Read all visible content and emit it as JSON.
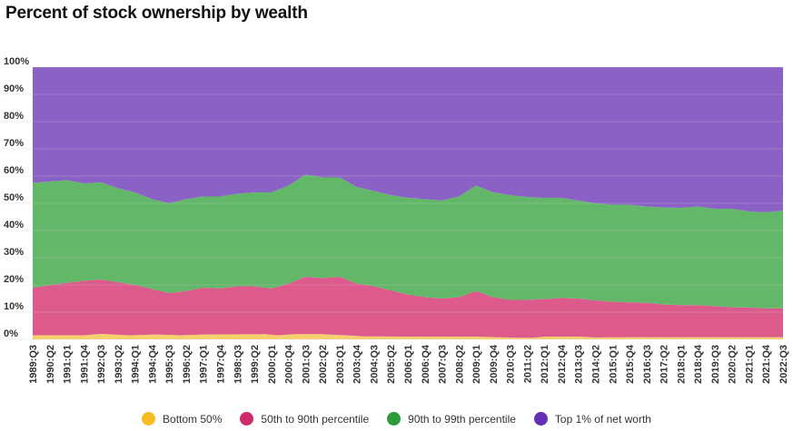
{
  "chart_data": {
    "type": "area",
    "stacked": true,
    "title": "Percent of stock ownership by wealth",
    "xlabel": "",
    "ylabel": "",
    "ylim": [
      0,
      100
    ],
    "yticks": [
      "0%",
      "10%",
      "20%",
      "30%",
      "40%",
      "50%",
      "60%",
      "70%",
      "80%",
      "90%",
      "100%"
    ],
    "grid": true,
    "legend_position": "bottom",
    "x": [
      "1989:Q3",
      "1989:Q4",
      "1990:Q1",
      "1990:Q2",
      "1990:Q3",
      "1990:Q4",
      "1991:Q1",
      "1991:Q2",
      "1991:Q3",
      "1991:Q4",
      "1992:Q1",
      "1992:Q2",
      "1992:Q3",
      "1992:Q4",
      "1993:Q1",
      "1993:Q2",
      "1993:Q3",
      "1993:Q4",
      "1994:Q1",
      "1994:Q2",
      "1994:Q3",
      "1994:Q4",
      "1995:Q1",
      "1995:Q2",
      "1995:Q3",
      "1995:Q4",
      "1996:Q1",
      "1996:Q2",
      "1996:Q3",
      "1996:Q4",
      "1997:Q1",
      "1997:Q2",
      "1997:Q3",
      "1997:Q4",
      "1998:Q1",
      "1998:Q2",
      "1998:Q3",
      "1998:Q4",
      "1999:Q1",
      "1999:Q2",
      "1999:Q3",
      "1999:Q4",
      "2000:Q1",
      "2000:Q2",
      "2000:Q3",
      "2000:Q4",
      "2001:Q1",
      "2001:Q2",
      "2001:Q3",
      "2001:Q4",
      "2002:Q1",
      "2002:Q2",
      "2002:Q3",
      "2002:Q4",
      "2003:Q1",
      "2003:Q2",
      "2003:Q3",
      "2003:Q4",
      "2004:Q1",
      "2004:Q2",
      "2004:Q3",
      "2004:Q4",
      "2005:Q1",
      "2005:Q2",
      "2005:Q3",
      "2005:Q4",
      "2006:Q1",
      "2006:Q2",
      "2006:Q3",
      "2006:Q4",
      "2007:Q1",
      "2007:Q2",
      "2007:Q3",
      "2007:Q4",
      "2008:Q1",
      "2008:Q2",
      "2008:Q3",
      "2008:Q4",
      "2009:Q1",
      "2009:Q2",
      "2009:Q3",
      "2009:Q4",
      "2010:Q1",
      "2010:Q2",
      "2010:Q3",
      "2010:Q4",
      "2011:Q1",
      "2011:Q2",
      "2011:Q3",
      "2011:Q4",
      "2012:Q1",
      "2012:Q2",
      "2012:Q3",
      "2012:Q4",
      "2013:Q1",
      "2013:Q2",
      "2013:Q3",
      "2013:Q4",
      "2014:Q1",
      "2014:Q2",
      "2014:Q3",
      "2014:Q4",
      "2015:Q1",
      "2015:Q2",
      "2015:Q3",
      "2015:Q4",
      "2016:Q1",
      "2016:Q2",
      "2016:Q3",
      "2016:Q4",
      "2017:Q1",
      "2017:Q2",
      "2017:Q3",
      "2017:Q4",
      "2018:Q1",
      "2018:Q2",
      "2018:Q3",
      "2018:Q4",
      "2019:Q1",
      "2019:Q2",
      "2019:Q3",
      "2019:Q4",
      "2020:Q1",
      "2020:Q2",
      "2020:Q3",
      "2020:Q4",
      "2021:Q1",
      "2021:Q2",
      "2021:Q3",
      "2021:Q4",
      "2022:Q1",
      "2022:Q2",
      "2022:Q3"
    ],
    "x_tick_labels": [
      "1989:Q3",
      "1990:Q2",
      "1991:Q1",
      "1991:Q4",
      "1992:Q3",
      "1993:Q2",
      "1994:Q1",
      "1994:Q4",
      "1995:Q3",
      "1996:Q2",
      "1997:Q1",
      "1997:Q4",
      "1998:Q3",
      "1999:Q2",
      "2000:Q1",
      "2000:Q4",
      "2001:Q3",
      "2002:Q2",
      "2003:Q1",
      "2003:Q4",
      "2004:Q3",
      "2005:Q2",
      "2006:Q1",
      "2006:Q4",
      "2007:Q3",
      "2008:Q2",
      "2009:Q1",
      "2009:Q4",
      "2010:Q3",
      "2011:Q2",
      "2012:Q1",
      "2012:Q4",
      "2013:Q3",
      "2014:Q2",
      "2015:Q1",
      "2015:Q4",
      "2016:Q3",
      "2017:Q2",
      "2018:Q1",
      "2018:Q4",
      "2019:Q3",
      "2020:Q2",
      "2021:Q1",
      "2021:Q4",
      "2022:Q3"
    ],
    "anchors": {
      "bottom": [
        [
          "1989:Q3",
          1.5
        ],
        [
          "1991:Q4",
          1.5
        ],
        [
          "1992:Q3",
          2.0
        ],
        [
          "1993:Q4",
          1.5
        ],
        [
          "1995:Q1",
          1.8
        ],
        [
          "1996:Q1",
          1.5
        ],
        [
          "1997:Q1",
          1.8
        ],
        [
          "1999:Q4",
          1.9
        ],
        [
          "2000:Q2",
          1.5
        ],
        [
          "2001:Q1",
          1.9
        ],
        [
          "2002:Q2",
          1.9
        ],
        [
          "2003:Q2",
          1.5
        ],
        [
          "2004:Q1",
          1.1
        ],
        [
          "2006:Q1",
          1.0
        ],
        [
          "2009:Q1",
          1.0
        ],
        [
          "2010:Q4",
          0.6
        ],
        [
          "2011:Q3",
          0.6
        ],
        [
          "2012:Q1",
          1.0
        ],
        [
          "2013:Q3",
          1.0
        ],
        [
          "2014:Q2",
          0.7
        ],
        [
          "2016:Q1",
          0.8
        ],
        [
          "2018:Q1",
          0.8
        ],
        [
          "2022:Q3",
          0.8
        ]
      ],
      "b50_90": [
        [
          "1989:Q3",
          19.0
        ],
        [
          "1990:Q4",
          20.5
        ],
        [
          "1991:Q4",
          21.5
        ],
        [
          "1992:Q3",
          22.0
        ],
        [
          "1993:Q2",
          21.0
        ],
        [
          "1994:Q1",
          20.0
        ],
        [
          "1994:Q4",
          18.5
        ],
        [
          "1995:Q3",
          17.0
        ],
        [
          "1996:Q2",
          17.8
        ],
        [
          "1997:Q1",
          19.0
        ],
        [
          "1997:Q4",
          18.7
        ],
        [
          "1998:Q3",
          19.5
        ],
        [
          "1999:Q2",
          19.5
        ],
        [
          "2000:Q1",
          18.7
        ],
        [
          "2000:Q4",
          20.5
        ],
        [
          "2001:Q3",
          23.0
        ],
        [
          "2002:Q2",
          22.5
        ],
        [
          "2003:Q1",
          23.0
        ],
        [
          "2003:Q4",
          20.5
        ],
        [
          "2004:Q3",
          19.5
        ],
        [
          "2005:Q2",
          18.0
        ],
        [
          "2006:Q1",
          16.5
        ],
        [
          "2006:Q4",
          15.5
        ],
        [
          "2007:Q3",
          15.0
        ],
        [
          "2008:Q2",
          15.5
        ],
        [
          "2009:Q1",
          17.8
        ],
        [
          "2009:Q4",
          15.5
        ],
        [
          "2010:Q3",
          14.5
        ],
        [
          "2011:Q2",
          14.5
        ],
        [
          "2012:Q1",
          14.8
        ],
        [
          "2012:Q4",
          15.2
        ],
        [
          "2013:Q3",
          15.0
        ],
        [
          "2014:Q2",
          14.3
        ],
        [
          "2015:Q1",
          13.8
        ],
        [
          "2015:Q4",
          13.6
        ],
        [
          "2016:Q3",
          13.4
        ],
        [
          "2017:Q2",
          12.8
        ],
        [
          "2018:Q1",
          12.6
        ],
        [
          "2018:Q4",
          12.6
        ],
        [
          "2019:Q3",
          12.2
        ],
        [
          "2020:Q2",
          11.8
        ],
        [
          "2021:Q1",
          11.7
        ],
        [
          "2021:Q4",
          11.4
        ],
        [
          "2022:Q3",
          11.4
        ]
      ],
      "b90_99": [
        [
          "1989:Q3",
          57.5
        ],
        [
          "1990:Q2",
          58.0
        ],
        [
          "1991:Q1",
          58.5
        ],
        [
          "1991:Q4",
          57.3
        ],
        [
          "1992:Q3",
          57.7
        ],
        [
          "1993:Q2",
          55.5
        ],
        [
          "1994:Q1",
          54.0
        ],
        [
          "1994:Q4",
          51.5
        ],
        [
          "1995:Q3",
          50.0
        ],
        [
          "1996:Q2",
          51.5
        ],
        [
          "1997:Q1",
          52.5
        ],
        [
          "1997:Q4",
          52.5
        ],
        [
          "1998:Q3",
          53.5
        ],
        [
          "1999:Q2",
          54.0
        ],
        [
          "2000:Q1",
          54.0
        ],
        [
          "2000:Q4",
          56.5
        ],
        [
          "2001:Q3",
          60.5
        ],
        [
          "2002:Q2",
          59.5
        ],
        [
          "2003:Q1",
          59.5
        ],
        [
          "2003:Q4",
          56.0
        ],
        [
          "2004:Q3",
          54.5
        ],
        [
          "2005:Q2",
          53.0
        ],
        [
          "2006:Q1",
          52.0
        ],
        [
          "2006:Q4",
          51.5
        ],
        [
          "2007:Q3",
          51.0
        ],
        [
          "2008:Q2",
          52.5
        ],
        [
          "2009:Q1",
          56.5
        ],
        [
          "2009:Q4",
          54.0
        ],
        [
          "2010:Q3",
          53.0
        ],
        [
          "2011:Q2",
          52.3
        ],
        [
          "2012:Q1",
          52.0
        ],
        [
          "2012:Q4",
          52.0
        ],
        [
          "2013:Q3",
          51.0
        ],
        [
          "2014:Q2",
          50.0
        ],
        [
          "2015:Q1",
          49.5
        ],
        [
          "2015:Q4",
          49.5
        ],
        [
          "2016:Q3",
          48.8
        ],
        [
          "2017:Q2",
          48.5
        ],
        [
          "2018:Q1",
          48.3
        ],
        [
          "2018:Q4",
          48.8
        ],
        [
          "2019:Q3",
          48.0
        ],
        [
          "2020:Q2",
          48.0
        ],
        [
          "2021:Q1",
          47.0
        ],
        [
          "2021:Q4",
          46.7
        ],
        [
          "2022:Q3",
          47.3
        ]
      ]
    },
    "series": [
      {
        "name": "Bottom 50%",
        "color": "#f5bd1f",
        "fill": "#f7d06e",
        "key": "bottom"
      },
      {
        "name": "50th to 90th percentile",
        "color": "#cf2b6c",
        "fill": "#dc5a8c",
        "key": "b50_90"
      },
      {
        "name": "90th to 99th percentile",
        "color": "#2e9b3a",
        "fill": "#63b769",
        "key": "b90_99"
      },
      {
        "name": "Top 1% of net worth",
        "color": "#6330b5",
        "fill": "#8a62c6",
        "key": "top"
      }
    ]
  }
}
